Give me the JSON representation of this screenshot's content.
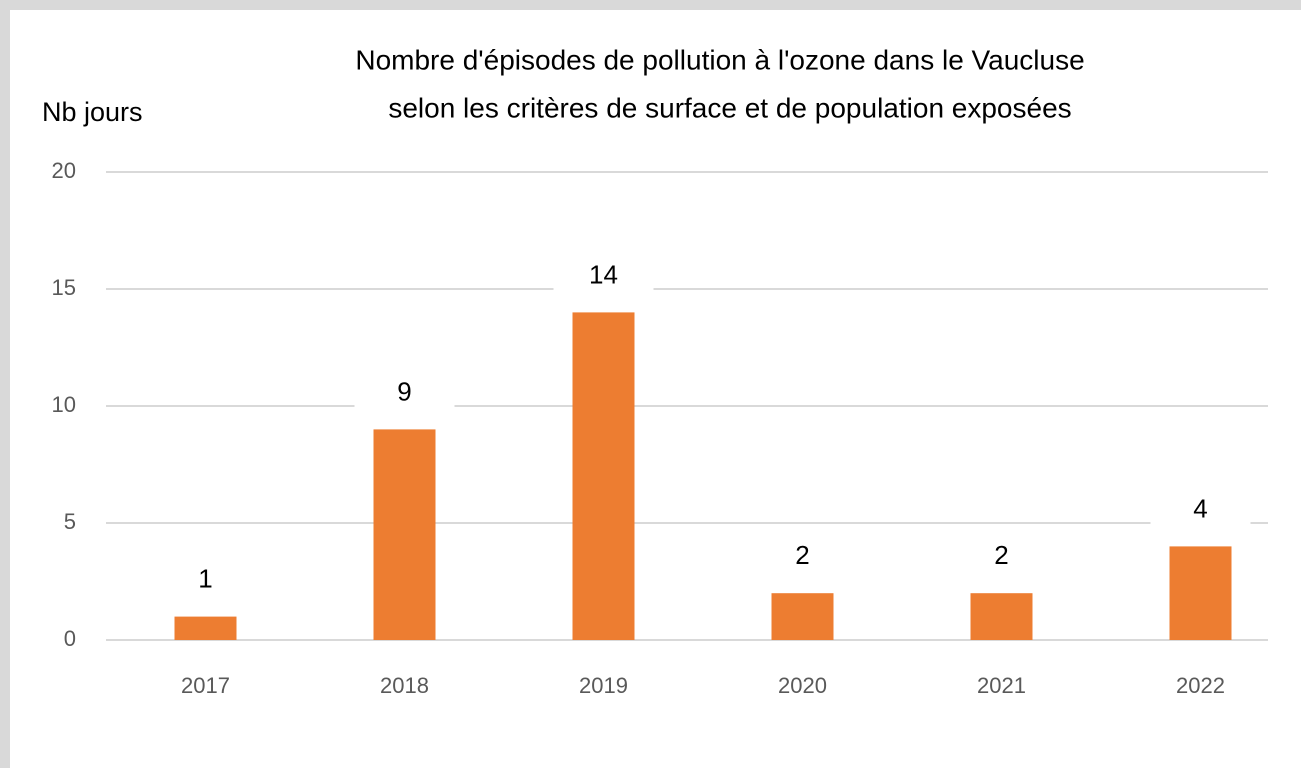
{
  "chart_data": {
    "type": "bar",
    "title": [
      "Nombre d'épisodes de pollution à l'ozone dans le Vaucluse",
      "selon les critères de surface et de population exposées"
    ],
    "y_label": "Nb jours",
    "categories": [
      "2017",
      "2018",
      "2019",
      "2020",
      "2021",
      "2022"
    ],
    "values": [
      1,
      9,
      14,
      2,
      2,
      4
    ],
    "color": "#ed7d31",
    "ylim": [
      0,
      20
    ],
    "yticks": [
      0,
      5,
      10,
      15,
      20
    ],
    "grid": true
  }
}
